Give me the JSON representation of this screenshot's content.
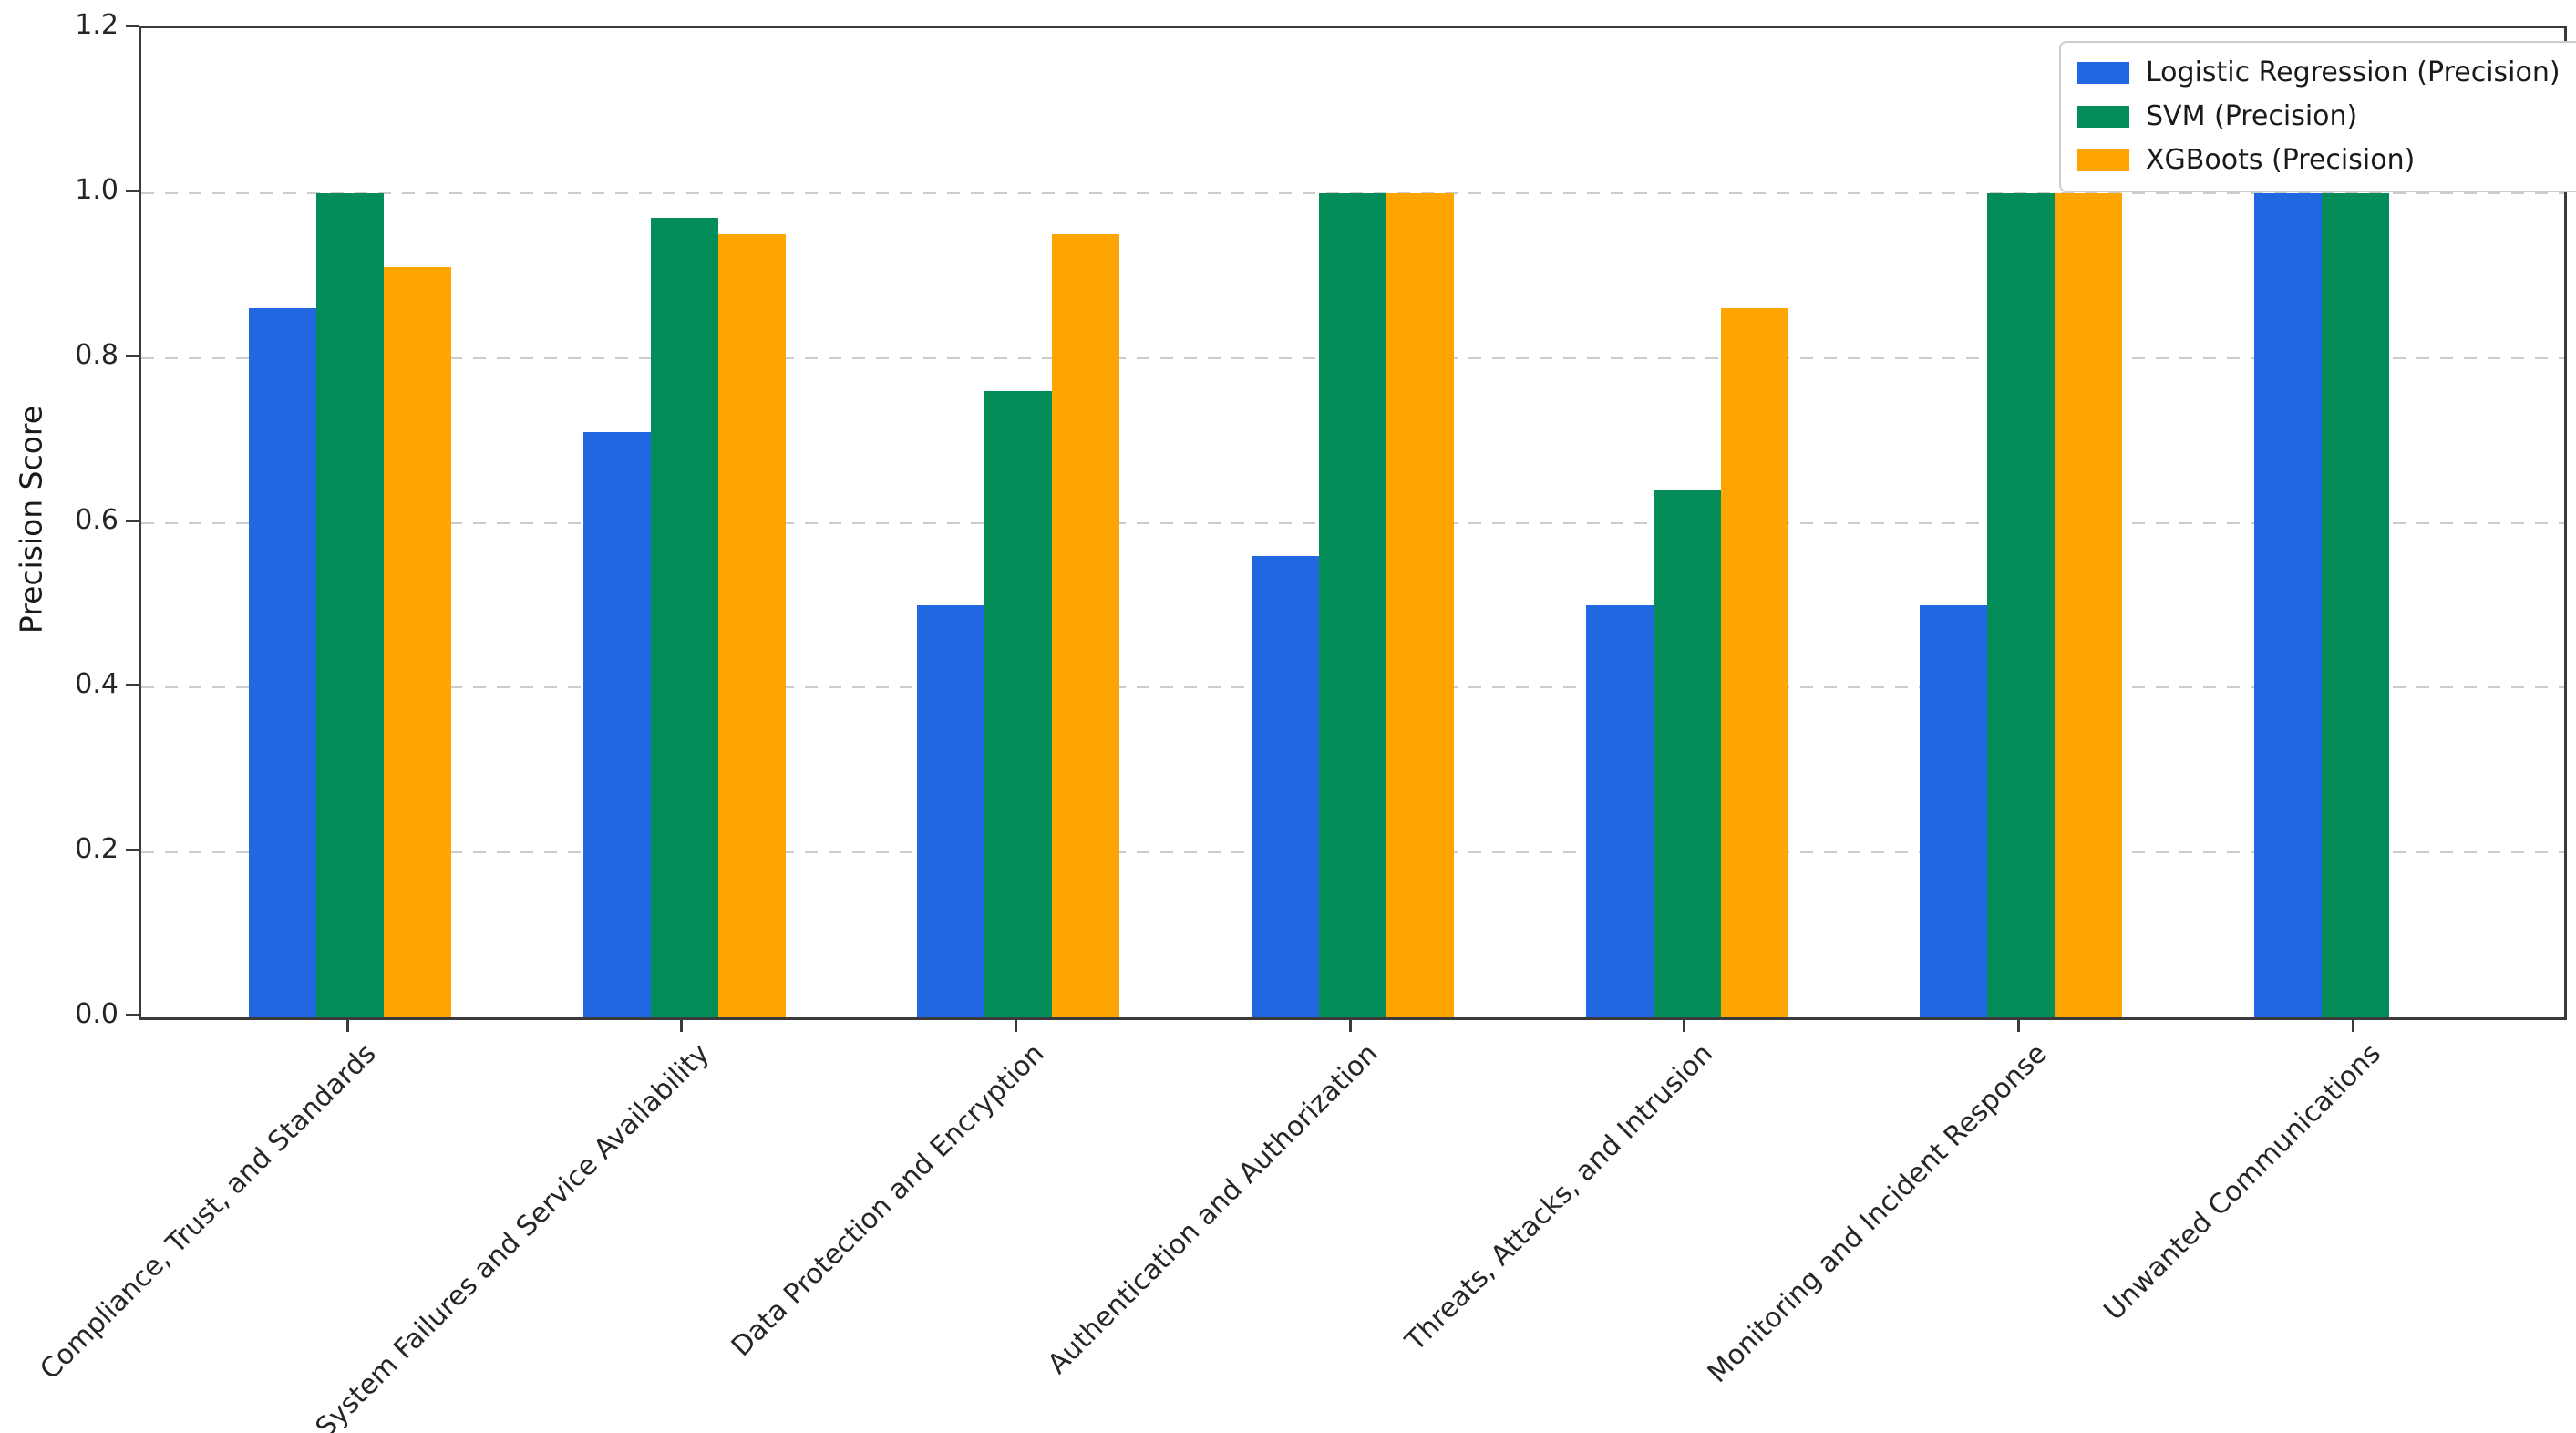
{
  "figure": {
    "background": "#ffffff",
    "axis_color": "#3a3a3a",
    "gridline_color": "#cccccc",
    "text_color": "#262626"
  },
  "chart_data": {
    "type": "bar",
    "title": "",
    "xlabel": "",
    "ylabel": "Precision Score",
    "ylim": [
      0,
      1.2
    ],
    "yticks": [
      "0.0",
      "0.2",
      "0.4",
      "0.6",
      "0.8",
      "1.0",
      "1.2"
    ],
    "grid": "horizontal-dashed",
    "legend_position": "upper-right",
    "categories": [
      "Compliance, Trust, and Standards",
      "System Failures and Service Availability",
      "Data Protection and Encryption",
      "Authentication and Authorization",
      "Threats, Attacks, and Intrusion",
      "Monitoring and Incident Response",
      "Unwanted Communications"
    ],
    "series": [
      {
        "name": "Logistic Regression (Precision)",
        "color": "#2267E2",
        "values": [
          0.86,
          0.71,
          0.5,
          0.56,
          0.5,
          0.5,
          1.0
        ]
      },
      {
        "name": "SVM (Precision)",
        "color": "#048D58",
        "values": [
          1.0,
          0.97,
          0.76,
          1.0,
          0.64,
          1.0,
          1.0
        ]
      },
      {
        "name": "XGBoots (Precision)",
        "color": "#FFA502",
        "values": [
          0.91,
          0.95,
          0.95,
          1.0,
          0.86,
          1.0,
          0.0
        ]
      }
    ]
  }
}
